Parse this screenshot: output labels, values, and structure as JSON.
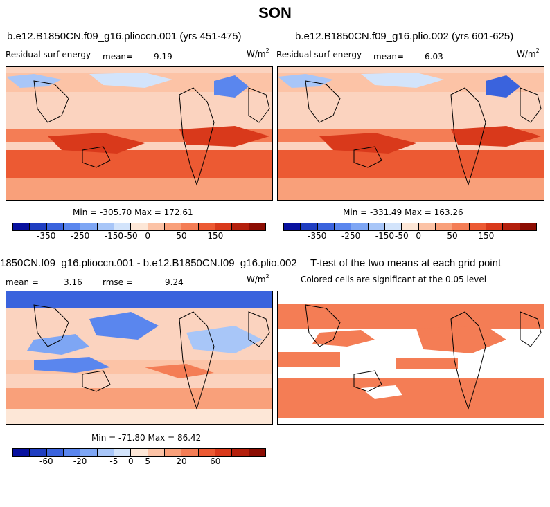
{
  "figure": {
    "title": "SON",
    "units_label": "W/m",
    "units_exp": "2"
  },
  "panels": [
    {
      "id": "p1",
      "title": "b.e12.B1850CN.f09_g16.plioccn.001 (yrs 451-475)",
      "variable": "Residual surf energy",
      "mean_label": "mean=",
      "mean_value": "9.19",
      "min_max": "Min = -305.70 Max = 172.61"
    },
    {
      "id": "p2",
      "title": "b.e12.B1850CN.f09_g16.plio.002 (yrs 601-625)",
      "variable": "Residual surf energy",
      "mean_label": "mean=",
      "mean_value": "6.03",
      "min_max": "Min = -331.49 Max = 163.26"
    },
    {
      "id": "p3",
      "title": "1850CN.f09_g16.plioccn.001 - b.e12.B1850CN.f09_g16.plio.002",
      "mean_label": "mean =",
      "mean_value": "3.16",
      "rmse_label": "rmse =",
      "rmse_value": "9.24",
      "min_max": "Min = -71.80 Max = 86.42"
    },
    {
      "id": "p4",
      "title": "T-test of the two means at each grid point",
      "subtitle": "Colored cells are significant at the 0.05 level"
    }
  ],
  "colorbars": {
    "abs": {
      "colors": [
        "#08119f",
        "#1f3ec1",
        "#3a63dd",
        "#5a86ee",
        "#7ea6f4",
        "#a8c6f8",
        "#d3e4fb",
        "#fde7d7",
        "#fcc3a6",
        "#f9a07a",
        "#f47d55",
        "#ec5a33",
        "#d9391b",
        "#b41f0c",
        "#8c0d03"
      ],
      "tick_labels": [
        "-350",
        "-250",
        "-150",
        "-50",
        "0",
        "50",
        "150"
      ]
    },
    "diff": {
      "colors": [
        "#08119f",
        "#1f3ec1",
        "#3a63dd",
        "#5a86ee",
        "#7ea6f4",
        "#a8c6f8",
        "#d3e4fb",
        "#fde7d7",
        "#fcc3a6",
        "#f9a07a",
        "#f47d55",
        "#ec5a33",
        "#d9391b",
        "#b41f0c",
        "#8c0d03"
      ],
      "tick_labels": [
        "-60",
        "-20",
        "-5",
        "0",
        "5",
        "20",
        "60"
      ]
    }
  },
  "chart_data": [
    {
      "type": "heatmap",
      "title": "b.e12.B1850CN.f09_g16.plioccn.001 (yrs 451-475)",
      "variable": "Residual surf energy",
      "units": "W/m2",
      "mean": 9.19,
      "min": -305.7,
      "max": 172.61,
      "colorbar_ticks": [
        -350,
        -250,
        -150,
        -50,
        0,
        50,
        150
      ]
    },
    {
      "type": "heatmap",
      "title": "b.e12.B1850CN.f09_g16.plio.002 (yrs 601-625)",
      "variable": "Residual surf energy",
      "units": "W/m2",
      "mean": 6.03,
      "min": -331.49,
      "max": 163.26,
      "colorbar_ticks": [
        -350,
        -250,
        -150,
        -50,
        0,
        50,
        150
      ]
    },
    {
      "type": "heatmap",
      "title": "1850CN.f09_g16.plioccn.001 - b.e12.B1850CN.f09_g16.plio.002",
      "units": "W/m2",
      "mean": 3.16,
      "rmse": 9.24,
      "min": -71.8,
      "max": 86.42,
      "colorbar_ticks": [
        -60,
        -20,
        -5,
        0,
        5,
        20,
        60
      ]
    },
    {
      "type": "heatmap",
      "title": "T-test of the two means at each grid point",
      "subtitle": "Colored cells are significant at the 0.05 level",
      "significance_level": 0.05
    }
  ]
}
